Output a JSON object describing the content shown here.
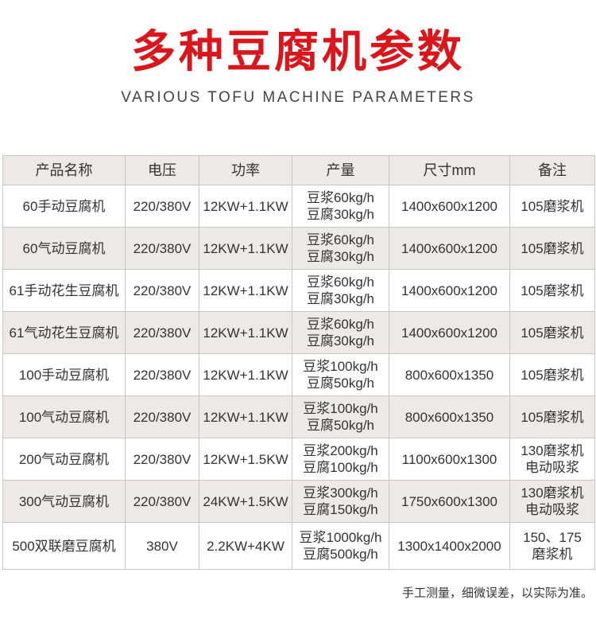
{
  "title": "多种豆腐机参数",
  "subtitle": "VARIOUS TOFU MACHINE PARAMETERS",
  "table": {
    "headers": [
      "产品名称",
      "电压",
      "功率",
      "产量",
      "尺寸mm",
      "备注"
    ],
    "rows": [
      [
        "60手动豆腐机",
        "220/380V",
        "12KW+1.1KW",
        [
          "豆浆60kg/h",
          "豆腐30kg/h"
        ],
        "1400x600x1200",
        [
          "105磨浆机"
        ]
      ],
      [
        "60气动豆腐机",
        "220/380V",
        "12KW+1.1KW",
        [
          "豆浆60kg/h",
          "豆腐30kg/h"
        ],
        "1400x600x1200",
        [
          "105磨浆机"
        ]
      ],
      [
        "61手动花生豆腐机",
        "220/380V",
        "12KW+1.1KW",
        [
          "豆浆60kg/h",
          "豆腐30kg/h"
        ],
        "1400x600x1200",
        [
          "105磨浆机"
        ]
      ],
      [
        "61气动花生豆腐机",
        "220/380V",
        "12KW+1.1KW",
        [
          "豆浆60kg/h",
          "豆腐30kg/h"
        ],
        "1400x600x1200",
        [
          "105磨浆机"
        ]
      ],
      [
        "100手动豆腐机",
        "220/380V",
        "12KW+1.1KW",
        [
          "豆浆100kg/h",
          "豆腐50kg/h"
        ],
        "800x600x1350",
        [
          "105磨浆机"
        ]
      ],
      [
        "100气动豆腐机",
        "220/380V",
        "12KW+1.1KW",
        [
          "豆浆100kg/h",
          "豆腐50kg/h"
        ],
        "800x600x1350",
        [
          "105磨浆机"
        ]
      ],
      [
        "200气动豆腐机",
        "220/380V",
        "12KW+1.5KW",
        [
          "豆浆200kg/h",
          "豆腐100kg/h"
        ],
        "1100x600x1300",
        [
          "130磨浆机",
          "电动吸浆"
        ]
      ],
      [
        "300气动豆腐机",
        "220/380V",
        "24KW+1.5KW",
        [
          "豆浆300kg/h",
          "豆腐150kg/h"
        ],
        "1750x600x1300",
        [
          "130磨浆机",
          "电动吸浆"
        ]
      ],
      [
        "500双联磨豆腐机",
        "380V",
        "2.2KW+4KW",
        [
          "豆浆1000kg/h",
          "豆腐500kg/h"
        ],
        "1300x1400x2000",
        [
          "150、175",
          "磨浆机"
        ]
      ]
    ]
  },
  "note": "手工测量，细微误差，以实际为准。"
}
